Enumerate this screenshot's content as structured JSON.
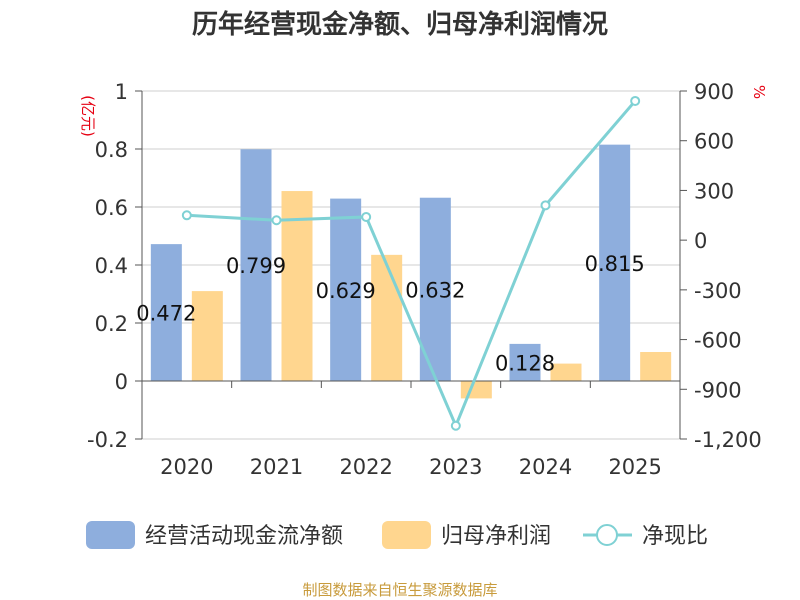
{
  "chart_data": {
    "type": "bar+line",
    "title": "历年经营现金净额、归母净利润情况",
    "categories": [
      "2020",
      "2021",
      "2022",
      "2023",
      "2024",
      "2025"
    ],
    "left_axis": {
      "unit": "(亿元)",
      "min": -0.2,
      "max": 1,
      "ticks": [
        -0.2,
        0,
        0.2,
        0.4,
        0.6,
        0.8,
        1
      ],
      "tick_labels": [
        "-0.2",
        "0",
        "0.2",
        "0.4",
        "0.6",
        "0.8",
        "1"
      ]
    },
    "right_axis": {
      "unit": "%",
      "min": -1200,
      "max": 900,
      "ticks": [
        -1200,
        -900,
        -600,
        -300,
        0,
        300,
        600,
        900
      ],
      "tick_labels": [
        "-1,200",
        "-900",
        "-600",
        "-300",
        "0",
        "300",
        "600",
        "900"
      ]
    },
    "series": [
      {
        "name": "经营活动现金流净额",
        "type": "bar",
        "axis": "left",
        "color": "#8eaedd",
        "values": [
          0.472,
          0.799,
          0.629,
          0.632,
          0.128,
          0.815
        ],
        "data_labels": [
          "0.472",
          "0.799",
          "0.629",
          "0.632",
          "0.128",
          "0.815"
        ]
      },
      {
        "name": "归母净利润",
        "type": "bar",
        "axis": "left",
        "color": "#ffd68f",
        "values": [
          0.31,
          0.655,
          0.435,
          -0.06,
          0.06,
          0.1
        ]
      },
      {
        "name": "净现比",
        "type": "line",
        "axis": "right",
        "color": "#7fd1d4",
        "values": [
          150,
          120,
          140,
          -1120,
          210,
          840
        ]
      }
    ],
    "legend_position": "bottom",
    "grid": true
  },
  "source": "制图数据来自恒生聚源数据库"
}
